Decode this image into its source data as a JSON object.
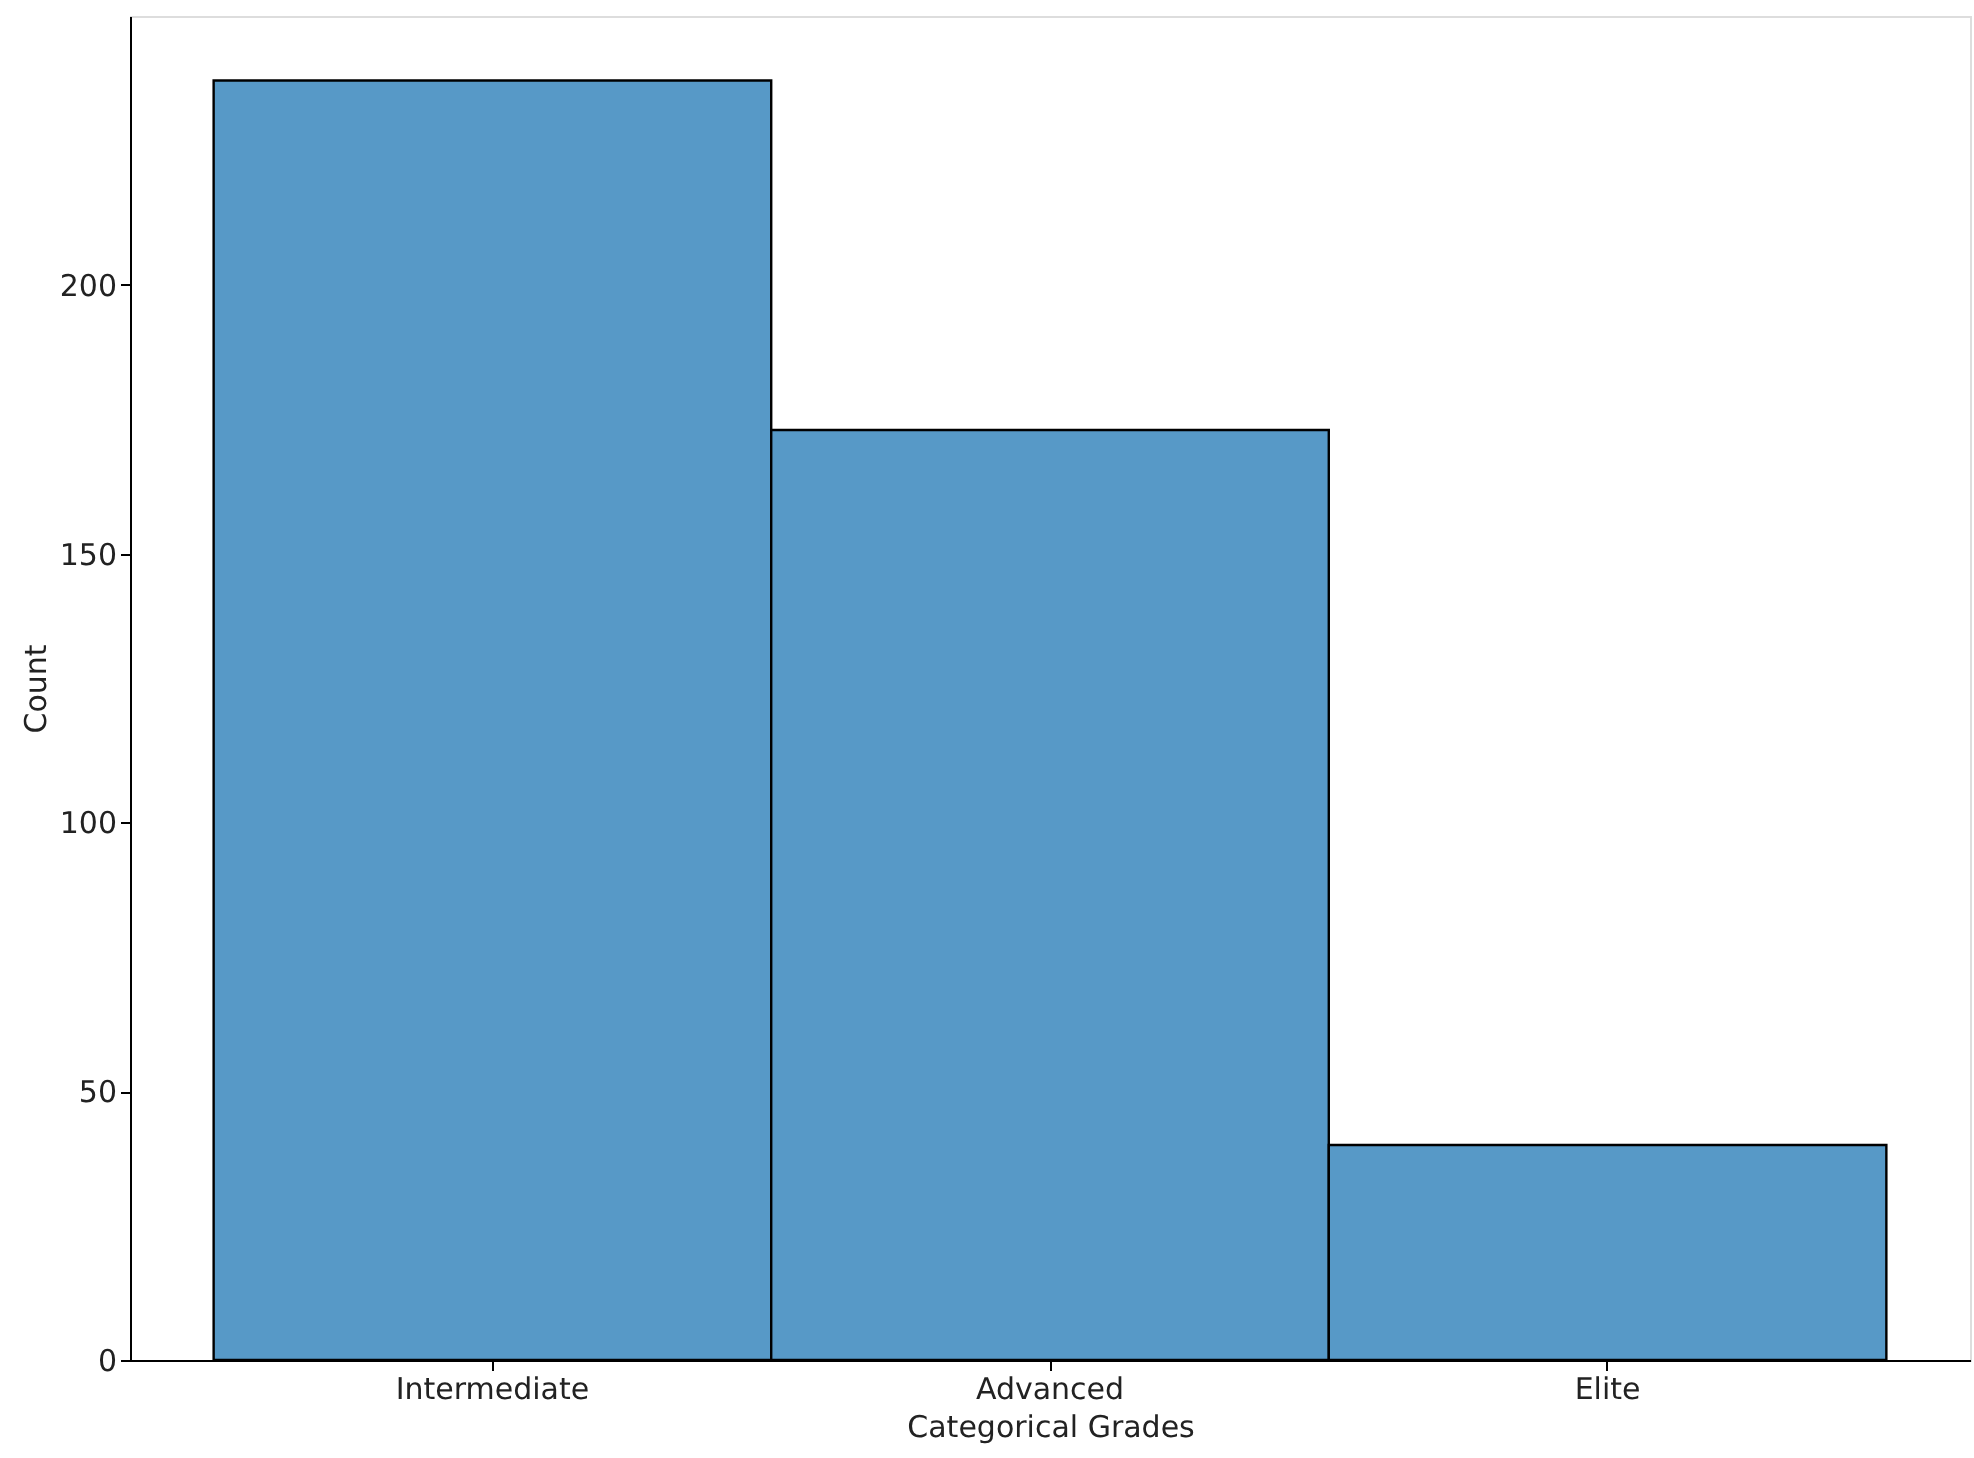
{
  "chart_data": {
    "type": "bar",
    "xlabel": "Categorical Grades",
    "ylabel": "Count",
    "categories": [
      "Intermediate",
      "Advanced",
      "Elite"
    ],
    "values": [
      238,
      173,
      40
    ],
    "color": "#5799c7",
    "ylim": [
      0,
      250
    ],
    "yticks": [
      0,
      50,
      100,
      150,
      200
    ],
    "grid": false
  }
}
